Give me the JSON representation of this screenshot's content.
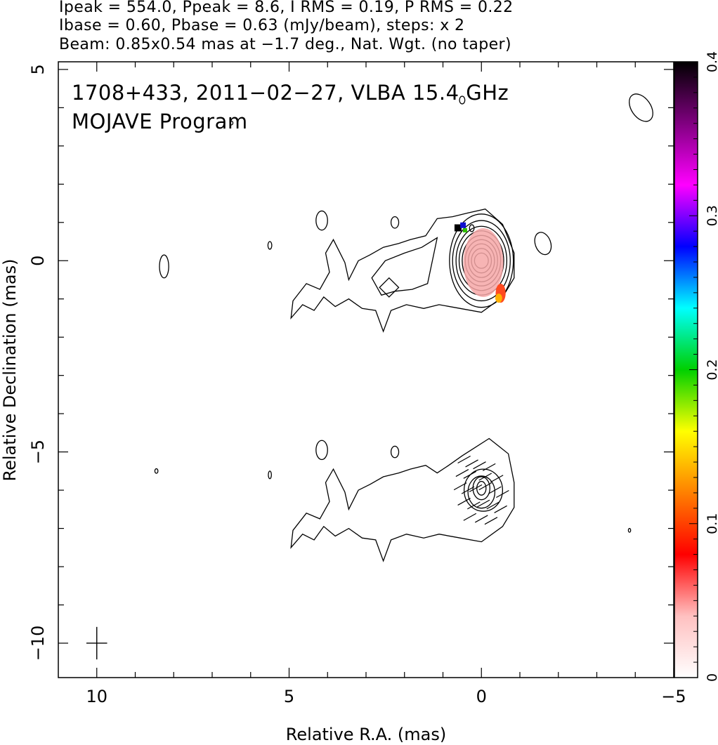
{
  "header": {
    "line1": "Ipeak = 554.0, Ppeak = 8.6, I RMS = 0.19, P RMS = 0.22",
    "line2": "Ibase = 0.60, Pbase = 0.63 (mJy/beam), steps: x 2",
    "line3": "Beam: 0.85x0.54 mas at −1.7 deg., Nat. Wgt. (no taper)"
  },
  "chart_data": {
    "type": "contour",
    "title_line1": "1708+433, 2011−02−27, VLBA 15.4 GHz",
    "title_line2": "MOJAVE Program",
    "xlabel": "Relative R.A. (mas)",
    "ylabel": "Relative Declination (mas)",
    "xlim": [
      11,
      -5
    ],
    "ylim": [
      -10.9,
      5.2
    ],
    "xticks": [
      10,
      5,
      0,
      -5
    ],
    "xtick_labels": [
      "10",
      "5",
      "0",
      "−5"
    ],
    "yticks": [
      5,
      0,
      -5,
      -10
    ],
    "ytick_labels": [
      "5",
      "0",
      "−5",
      "−10"
    ],
    "colorbar": {
      "min": 0,
      "max": 0.4,
      "ticks": [
        0,
        0.1,
        0.2,
        0.3,
        0.4
      ],
      "tick_labels": [
        "0",
        "0.1",
        "0.2",
        "0.3",
        "0.4"
      ],
      "colormap": [
        "#ffffff",
        "#ffc0c0",
        "#ff0000",
        "#ff8000",
        "#ffff00",
        "#00d000",
        "#00ffff",
        "#0000ff",
        "#ff00ff",
        "#800080",
        "#000000"
      ]
    },
    "panels": [
      {
        "name": "total intensity with fractional polarization",
        "core": [
          0,
          0
        ],
        "contour_levels_mJy": [
          0.6,
          1.2,
          2.4,
          4.8,
          9.6,
          19.2,
          38.4,
          76.8,
          153.6,
          307.2
        ],
        "jet_direction": "east",
        "jet_extent_mas": 4.9
      },
      {
        "name": "polarized intensity with EVPA ticks",
        "core": [
          0,
          -6
        ],
        "contour_levels_mJy": [
          0.63,
          1.26,
          2.52,
          5.04
        ],
        "jet_direction": "east",
        "jet_extent_mas": 4.9
      }
    ],
    "beam": {
      "major_mas": 0.85,
      "minor_mas": 0.54,
      "pa_deg": -1.7,
      "position": [
        10,
        -10
      ]
    }
  }
}
